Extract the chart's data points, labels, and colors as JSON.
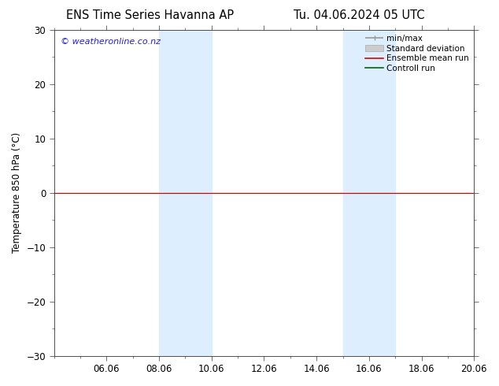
{
  "title_left": "ENS Time Series Havanna AP",
  "title_right": "Tu. 04.06.2024 05 UTC",
  "ylabel": "Temperature 850 hPa (°C)",
  "ylim": [
    -30,
    30
  ],
  "yticks": [
    -30,
    -20,
    -10,
    0,
    10,
    20,
    30
  ],
  "xtick_labels": [
    "06.06",
    "08.06",
    "10.06",
    "12.06",
    "14.06",
    "16.06",
    "18.06",
    "20.06"
  ],
  "xtick_positions": [
    2,
    4,
    6,
    8,
    10,
    12,
    14,
    16
  ],
  "x_min": 0,
  "x_max": 16,
  "shaded_bands": [
    {
      "x_start": 4.0,
      "x_end": 6.0
    },
    {
      "x_start": 11.0,
      "x_end": 13.0
    }
  ],
  "shaded_color": "#ddeeff",
  "hline_y": 0,
  "control_run_y": 0.0,
  "ensemble_mean_y": 0.0,
  "watermark_text": "© weatheronline.co.nz",
  "watermark_color": "#2222cc",
  "legend_entries": [
    {
      "label": "min/max",
      "color": "#999999",
      "lw": 1.2
    },
    {
      "label": "Standard deviation",
      "color": "#cccccc",
      "lw": 5
    },
    {
      "label": "Ensemble mean run",
      "color": "#dd0000",
      "lw": 1.2
    },
    {
      "label": "Controll run",
      "color": "#006600",
      "lw": 1.2
    }
  ],
  "background_color": "#ffffff",
  "title_fontsize": 10.5,
  "axis_label_fontsize": 8.5,
  "tick_fontsize": 8.5,
  "watermark_fontsize": 8,
  "legend_fontsize": 7.5
}
